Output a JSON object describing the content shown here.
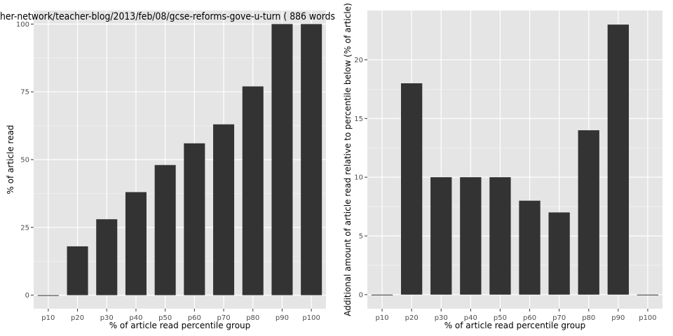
{
  "chart_data": [
    {
      "type": "bar",
      "title": "her-network/teacher-blog/2013/feb/08/gcse-reforms-gove-u-turn ( 886 words",
      "xlabel": "% of article read percentile group",
      "ylabel": "% of article read",
      "categories": [
        "p10",
        "p20",
        "p30",
        "p40",
        "p50",
        "p60",
        "p70",
        "p80",
        "p90",
        "p100"
      ],
      "values": [
        0,
        18,
        28,
        38,
        48,
        56,
        63,
        77,
        100,
        100
      ],
      "yticks": [
        0,
        25,
        50,
        75,
        100
      ],
      "ylim": [
        -5,
        105
      ],
      "grid": true,
      "colors": {
        "panel": "#e5e5e5",
        "grid_major": "#ffffff",
        "grid_minor": "#f2f2f2",
        "bar": "#333333"
      }
    },
    {
      "type": "bar",
      "title": "",
      "xlabel": "% of article read percentile group",
      "ylabel": "Additional amount of article read relative to percentile below (% of article)",
      "categories": [
        "p10",
        "p20",
        "p30",
        "p40",
        "p50",
        "p60",
        "p70",
        "p80",
        "p90",
        "p100"
      ],
      "values": [
        0,
        18,
        10,
        10,
        10,
        8,
        7,
        14,
        23,
        0
      ],
      "yticks": [
        0,
        5,
        10,
        15,
        20
      ],
      "ylim": [
        -1.2,
        24.2
      ],
      "grid": true,
      "colors": {
        "panel": "#e5e5e5",
        "grid_major": "#ffffff",
        "grid_minor": "#f2f2f2",
        "bar": "#333333"
      }
    }
  ]
}
